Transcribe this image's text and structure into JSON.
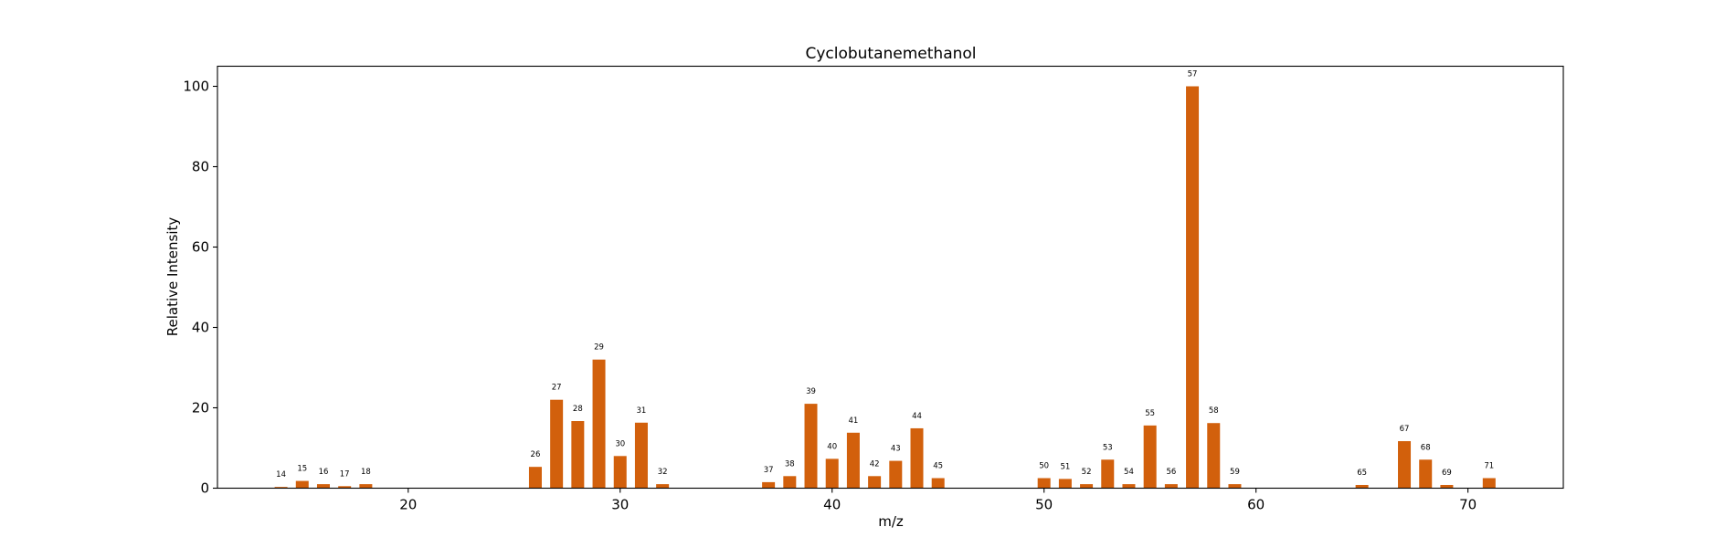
{
  "chart_data": {
    "type": "bar",
    "title": "Cyclobutanemethanol",
    "xlabel": "m/z",
    "ylabel": "Relative Intensity",
    "xlim": [
      11,
      74.5
    ],
    "ylim": [
      0,
      105
    ],
    "xticks": [
      20,
      30,
      40,
      50,
      60,
      70
    ],
    "yticks": [
      0,
      20,
      40,
      60,
      80,
      100
    ],
    "bar_color": "#d2600c",
    "grid": false,
    "points": [
      {
        "mz": 14,
        "intensity": 0.3
      },
      {
        "mz": 15,
        "intensity": 1.8
      },
      {
        "mz": 16,
        "intensity": 1.0
      },
      {
        "mz": 17,
        "intensity": 0.5
      },
      {
        "mz": 18,
        "intensity": 1.0
      },
      {
        "mz": 26,
        "intensity": 5.3
      },
      {
        "mz": 27,
        "intensity": 22.0
      },
      {
        "mz": 28,
        "intensity": 16.7
      },
      {
        "mz": 29,
        "intensity": 32.0
      },
      {
        "mz": 30,
        "intensity": 8.0
      },
      {
        "mz": 31,
        "intensity": 16.3
      },
      {
        "mz": 32,
        "intensity": 1.0
      },
      {
        "mz": 37,
        "intensity": 1.5
      },
      {
        "mz": 38,
        "intensity": 3.0
      },
      {
        "mz": 39,
        "intensity": 21.0
      },
      {
        "mz": 40,
        "intensity": 7.3
      },
      {
        "mz": 41,
        "intensity": 13.8
      },
      {
        "mz": 42,
        "intensity": 3.0
      },
      {
        "mz": 43,
        "intensity": 6.8
      },
      {
        "mz": 44,
        "intensity": 14.9
      },
      {
        "mz": 45,
        "intensity": 2.5
      },
      {
        "mz": 50,
        "intensity": 2.5
      },
      {
        "mz": 51,
        "intensity": 2.3
      },
      {
        "mz": 52,
        "intensity": 1.0
      },
      {
        "mz": 53,
        "intensity": 7.1
      },
      {
        "mz": 54,
        "intensity": 1.0
      },
      {
        "mz": 55,
        "intensity": 15.6
      },
      {
        "mz": 56,
        "intensity": 1.0
      },
      {
        "mz": 57,
        "intensity": 100.0
      },
      {
        "mz": 58,
        "intensity": 16.2
      },
      {
        "mz": 59,
        "intensity": 1.0
      },
      {
        "mz": 65,
        "intensity": 0.8
      },
      {
        "mz": 67,
        "intensity": 11.7
      },
      {
        "mz": 68,
        "intensity": 7.1
      },
      {
        "mz": 69,
        "intensity": 0.8
      },
      {
        "mz": 71,
        "intensity": 2.5
      }
    ]
  }
}
